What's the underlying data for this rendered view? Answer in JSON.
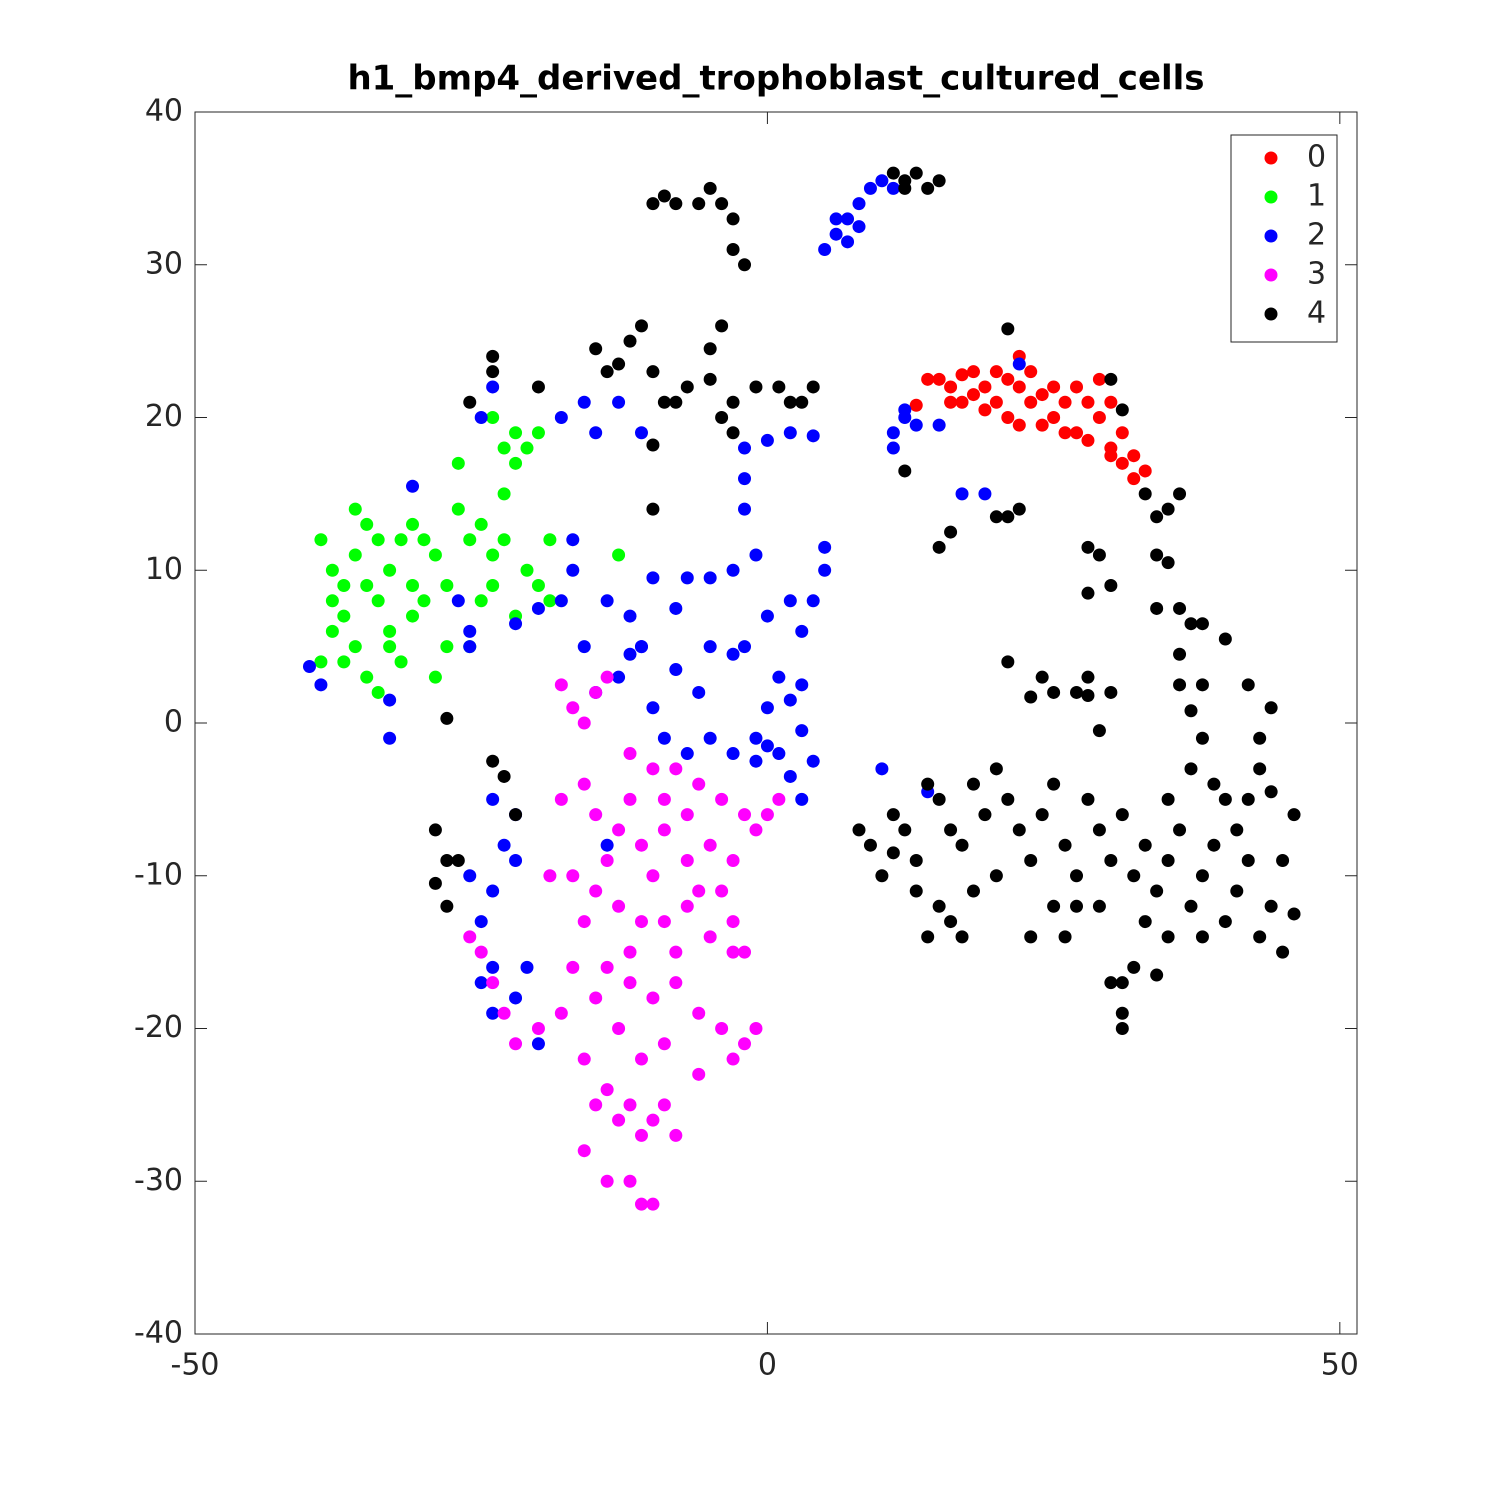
{
  "chart_data": {
    "type": "scatter",
    "title": "h1_bmp4_derived_trophoblast_cultured_cells",
    "xlim": [
      -50,
      51.5
    ],
    "ylim": [
      -40,
      40
    ],
    "xticks": [
      -50,
      0,
      50
    ],
    "yticks": [
      -40,
      -30,
      -20,
      -10,
      0,
      10,
      20,
      30,
      40
    ],
    "legend": "northeast",
    "series": [
      {
        "name": "0",
        "color": "#ff0000",
        "x": [
          15,
          16,
          17,
          18,
          19,
          20,
          21,
          22,
          22,
          23,
          24,
          25,
          26,
          27,
          28,
          29,
          29,
          30,
          31,
          32,
          33,
          17,
          19,
          21,
          25,
          27,
          30,
          31,
          20,
          23,
          14,
          16,
          18,
          26,
          28,
          32,
          13,
          24,
          22,
          30
        ],
        "y": [
          22.5,
          22,
          22.8,
          21.5,
          22,
          21,
          20,
          24,
          22,
          21,
          19.5,
          20,
          21,
          19,
          21,
          22.5,
          20,
          18,
          19,
          17.5,
          16.5,
          21,
          20.5,
          22.5,
          22,
          22,
          21,
          17,
          23,
          23,
          22.5,
          21,
          23,
          19,
          18.5,
          16,
          20.8,
          21.5,
          19.5,
          17.5
        ]
      },
      {
        "name": "1",
        "color": "#00ff00",
        "x": [
          -39,
          -38,
          -38,
          -37,
          -37,
          -36,
          -36,
          -35,
          -35,
          -34,
          -34,
          -33,
          -33,
          -32,
          -32,
          -31,
          -31,
          -30,
          -30,
          -29,
          -29,
          -28,
          -27,
          -27,
          -26,
          -25,
          -24,
          -24,
          -23,
          -23,
          -22,
          -22,
          -21,
          -21,
          -20,
          -20,
          -19,
          -19,
          -37,
          -39,
          -35,
          -34,
          -33,
          -31,
          -26,
          -24,
          -23,
          -22,
          -36,
          -38,
          -13,
          -25,
          -28
        ],
        "y": [
          12,
          10,
          8,
          9,
          7,
          11,
          14,
          13,
          9,
          12,
          8,
          10,
          6,
          12,
          4,
          9,
          13,
          8,
          12,
          11,
          3,
          5,
          14,
          17,
          12,
          8,
          11,
          9,
          18,
          15,
          19,
          17,
          18,
          10,
          9,
          19,
          8,
          12,
          4,
          4,
          3,
          2,
          5,
          7,
          5,
          20,
          12,
          7,
          5,
          6,
          11,
          13,
          9
        ]
      },
      {
        "name": "2",
        "color": "#0000ff",
        "x": [
          5,
          6,
          7,
          8,
          9,
          10,
          11,
          6,
          7,
          8,
          11,
          12,
          13,
          11,
          15,
          17,
          19,
          22,
          12,
          -2,
          0,
          2,
          4,
          -2,
          -2,
          -1,
          -3,
          -5,
          -7,
          -8,
          -10,
          -12,
          -14,
          -12,
          -11,
          -8,
          -6,
          -5,
          -2,
          0,
          2,
          3,
          4,
          5,
          5,
          1,
          3,
          -3,
          0,
          -1,
          -3,
          -5,
          -7,
          -9,
          -10,
          -11,
          -13,
          -15,
          -16,
          -18,
          -17,
          -18,
          -16,
          -15,
          -13,
          -11,
          -25,
          -24,
          -31,
          -40,
          -39,
          -33,
          -33,
          -27,
          -26,
          -26,
          -24,
          -23,
          -22,
          -24,
          -25,
          -24,
          -24,
          -22,
          -20,
          -21,
          -26,
          -22,
          -25,
          -14,
          1,
          2,
          3,
          4,
          -1,
          10,
          14,
          2,
          0,
          3,
          -17,
          -20,
          -22
        ],
        "y": [
          31,
          32,
          33,
          34,
          35,
          35.5,
          35,
          33,
          31.5,
          32.5,
          19,
          20,
          19.5,
          18,
          19.5,
          15,
          15,
          23.5,
          20.5,
          18,
          18.5,
          19,
          18.8,
          14,
          16,
          11,
          10,
          9.5,
          9.5,
          7.5,
          9.5,
          7,
          8,
          4.5,
          5,
          3.5,
          2,
          5,
          5,
          7,
          8,
          6,
          8,
          10,
          11.5,
          3,
          2.5,
          4.5,
          1,
          -1,
          -2,
          -1,
          -2,
          -1,
          1,
          5,
          3,
          2,
          5,
          8,
          10,
          20,
          21,
          19,
          21,
          19,
          20,
          22,
          15.5,
          3.7,
          2.5,
          1.5,
          -1,
          8,
          5,
          6,
          -5,
          -8,
          -9,
          -11,
          -13,
          -16,
          -19,
          -18,
          -21,
          -16,
          -10,
          -6,
          -17,
          -8,
          -2,
          -3.5,
          -5,
          -2.5,
          -2.5,
          -3,
          -4.5,
          1.5,
          -1.5,
          -0.5,
          12,
          7.5,
          6.5
        ]
      },
      {
        "name": "3",
        "color": "#ff00ff",
        "x": [
          -18,
          -17,
          -16,
          -14,
          -15,
          -12,
          -10,
          -8,
          -6,
          -4,
          -2,
          -1,
          0,
          1,
          -16,
          -15,
          -13,
          -11,
          -9,
          -7,
          -5,
          -3,
          -19,
          -17,
          -15,
          -13,
          -11,
          -9,
          -7,
          -5,
          -3,
          -2,
          -14,
          -12,
          -10,
          -8,
          -6,
          -4,
          -2,
          -1,
          -18,
          -20,
          -22,
          -23,
          -24,
          -25,
          -26,
          -16,
          -14,
          -12,
          -10,
          -9,
          -8,
          -11,
          -13,
          -15,
          -16,
          -14,
          -12,
          -11,
          -10,
          -6,
          -3,
          -9,
          -11,
          -13,
          -15,
          -17,
          -16,
          -12,
          -8,
          -6,
          -4,
          -10,
          -12,
          -14,
          -18,
          -3,
          -7,
          -9
        ],
        "y": [
          2.5,
          1,
          0,
          3,
          2,
          -2,
          -3,
          -3,
          -4,
          -5,
          -6,
          -7,
          -6,
          -5,
          -4,
          -6,
          -7,
          -8,
          -7,
          -9,
          -8,
          -9,
          -10,
          -10,
          -11,
          -12,
          -13,
          -13,
          -12,
          -14,
          -13,
          -15,
          -16,
          -17,
          -18,
          -17,
          -19,
          -20,
          -21,
          -20,
          -19,
          -20,
          -21,
          -19,
          -17,
          -15,
          -14,
          -22,
          -24,
          -25,
          -26,
          -25,
          -27,
          -27,
          -26,
          -25,
          -28,
          -30,
          -30,
          -31.5,
          -31.5,
          -23,
          -22,
          -21,
          -22,
          -20,
          -18,
          -16,
          -13,
          -15,
          -15,
          -11,
          -11,
          -10,
          -5,
          -9,
          -5,
          -15,
          -6,
          -5
        ]
      },
      {
        "name": "4",
        "color": "#000000",
        "x": [
          -10,
          -9,
          -8,
          -6,
          -5,
          -4,
          -3,
          -3,
          -2,
          11,
          12,
          13,
          14,
          15,
          12,
          -15,
          -14,
          -13,
          -12,
          -11,
          -10,
          -9,
          -8,
          -7,
          -5,
          -4,
          -3,
          -3,
          -1,
          1,
          2,
          3,
          4,
          -5,
          -4,
          -10,
          -20,
          -24,
          -24,
          -26,
          -10,
          -28,
          -24,
          -23,
          -22,
          -29,
          -28,
          -27,
          -29,
          -28,
          21,
          30,
          31,
          12,
          15,
          16,
          20,
          21,
          22,
          33,
          35,
          36,
          34,
          28,
          29,
          28,
          30,
          34,
          35,
          34,
          36,
          37,
          38,
          40,
          36,
          21,
          24,
          25,
          27,
          28,
          30,
          36,
          38,
          42,
          44,
          43,
          43,
          44,
          37,
          38,
          23,
          28,
          29,
          8,
          9,
          10,
          11,
          12,
          13,
          14,
          15,
          16,
          17,
          18,
          19,
          20,
          21,
          22,
          23,
          24,
          25,
          26,
          27,
          28,
          29,
          30,
          31,
          32,
          33,
          34,
          35,
          36,
          37,
          38,
          39,
          40,
          41,
          42,
          43,
          44,
          45,
          46,
          46,
          45,
          41,
          38,
          35,
          32,
          31,
          30,
          31,
          31,
          33,
          29,
          27,
          25,
          23,
          20,
          15,
          16,
          17,
          14,
          18,
          13,
          11,
          26,
          34,
          40,
          42,
          39,
          37,
          35
        ],
        "y": [
          34,
          34.5,
          34,
          34,
          35,
          34,
          33,
          31,
          30,
          36,
          35,
          36,
          35,
          35.5,
          35.5,
          24.5,
          23,
          23.5,
          25,
          26,
          23,
          21,
          21,
          22,
          22.5,
          20,
          21,
          19,
          22,
          22,
          21,
          21,
          22,
          24.5,
          26,
          18.2,
          22,
          24,
          23,
          21,
          14,
          0.3,
          -2.5,
          -3.5,
          -6,
          -7,
          -9,
          -9,
          -10.5,
          -12,
          25.8,
          22.5,
          20.5,
          16.5,
          11.5,
          12.5,
          13.5,
          13.5,
          14,
          15,
          14,
          15,
          13.5,
          11.5,
          11,
          8.5,
          9,
          11,
          10.5,
          7.5,
          7.5,
          6.5,
          6.5,
          5.5,
          4.5,
          4,
          3,
          2,
          2,
          3,
          2,
          2.5,
          2.5,
          2.5,
          1,
          -1,
          -3,
          -4.5,
          0.8,
          -1,
          1.7,
          1.8,
          -0.5,
          -7,
          -8,
          -10,
          -6,
          -7,
          -9,
          -4,
          -5,
          -7,
          -8,
          -4,
          -6,
          -3,
          -5,
          -7,
          -9,
          -6,
          -4,
          -8,
          -10,
          -5,
          -7,
          -9,
          -6,
          -10,
          -8,
          -11,
          -9,
          -7,
          -12,
          -10,
          -8,
          -13,
          -11,
          -9,
          -14,
          -12,
          -15,
          -12.5,
          -6,
          -9,
          -7,
          -14,
          -14,
          -16,
          -17,
          -17,
          -19,
          -20,
          -13,
          -12,
          -12,
          -12,
          -14,
          -10,
          -12,
          -13,
          -14,
          -14,
          -11,
          -11,
          -8.5,
          -14,
          -16.5,
          -5,
          -5,
          -4,
          -3,
          -5
        ]
      }
    ]
  }
}
